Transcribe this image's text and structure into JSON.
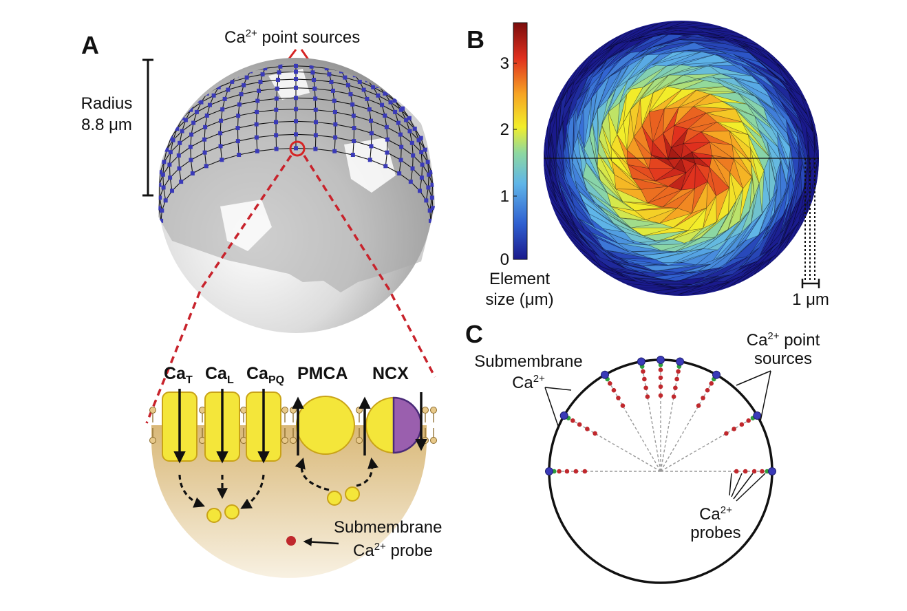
{
  "panel_a": {
    "letter": "A",
    "point_sources": {
      "base": "Ca",
      "sup": "2+",
      "rest": " point sources"
    },
    "radius_line1": "Radius",
    "radius_line2": "8.8 μm",
    "channels": [
      {
        "base": "Ca",
        "sub": "T"
      },
      {
        "base": "Ca",
        "sub": "L"
      },
      {
        "base": "Ca",
        "sub": "PQ"
      }
    ],
    "pmca": "PMCA",
    "ncx": "NCX",
    "probe_line1": "Submembrane",
    "probe_line2": {
      "base": "Ca",
      "sup": "2+",
      "rest": " probe"
    }
  },
  "panel_b": {
    "letter": "B",
    "colorbar_ticks": [
      "0",
      "1",
      "2",
      "3"
    ],
    "colorbar_label_line1": "Element",
    "colorbar_label_line2": "size (μm)",
    "scalebar": "1 μm",
    "colors": {
      "low": "#1a1a8c",
      "high": "#8b0000"
    }
  },
  "panel_c": {
    "letter": "C",
    "submembrane_line1": "Submembrane",
    "submembrane_line2": {
      "base": "Ca",
      "sup": "2+"
    },
    "sources_line1": {
      "base": "Ca",
      "sup": "2+",
      "rest": " point"
    },
    "sources_line2": "sources",
    "probes_line1": {
      "base": "Ca",
      "sup": "2+"
    },
    "probes_line2": "probes",
    "colors": {
      "source": "#3a3ab8",
      "sub": "#2e9e3e",
      "probe": "#c0282d"
    }
  }
}
